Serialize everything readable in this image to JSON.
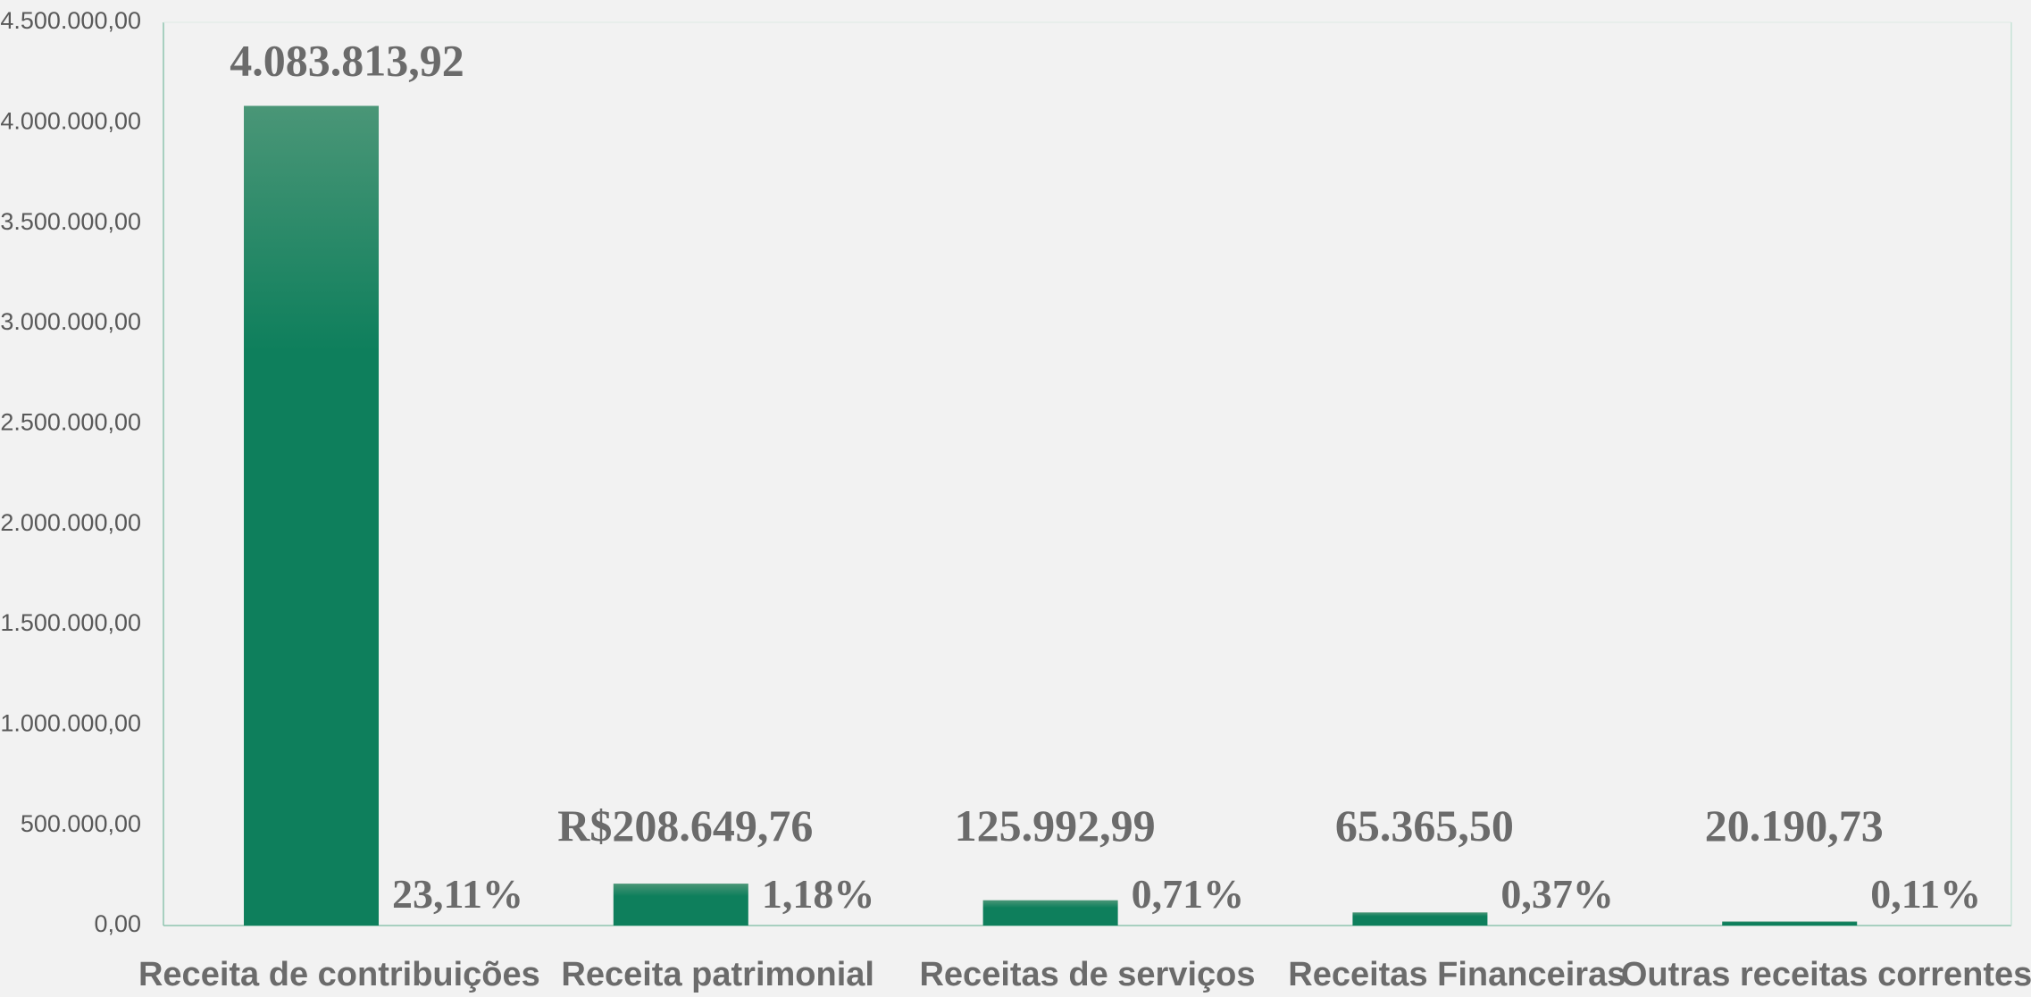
{
  "chart_data": {
    "type": "bar",
    "categories": [
      "Receita de contribuições",
      "Receita patrimonial",
      "Receitas de serviços",
      "Receitas Financeiras",
      "Outras receitas correntes"
    ],
    "values": [
      4083813.92,
      208649.76,
      125992.99,
      65365.5,
      20190.73
    ],
    "value_labels": [
      "4.083.813,92",
      "R$208.649,76",
      "125.992,99",
      "65.365,50",
      "20.190,73"
    ],
    "percent_labels": [
      "23,11%",
      "1,18%",
      "0,71%",
      "0,37%",
      "0,11%"
    ],
    "y_ticks": [
      "0,00",
      "500.000,00",
      "1.000.000,00",
      "1.500.000,00",
      "2.000.000,00",
      "2.500.000,00",
      "3.000.000,00",
      "3.500.000,00",
      "4.000.000,00",
      "4.500.000,00"
    ],
    "ylim": [
      0,
      4500000
    ],
    "y_step": 500000,
    "grid": false,
    "colors": {
      "bar_top": "#4a9677",
      "bar_bottom": "#0e7f5c",
      "axis": "#8fc4b0",
      "text": "#6b6b6b"
    }
  }
}
